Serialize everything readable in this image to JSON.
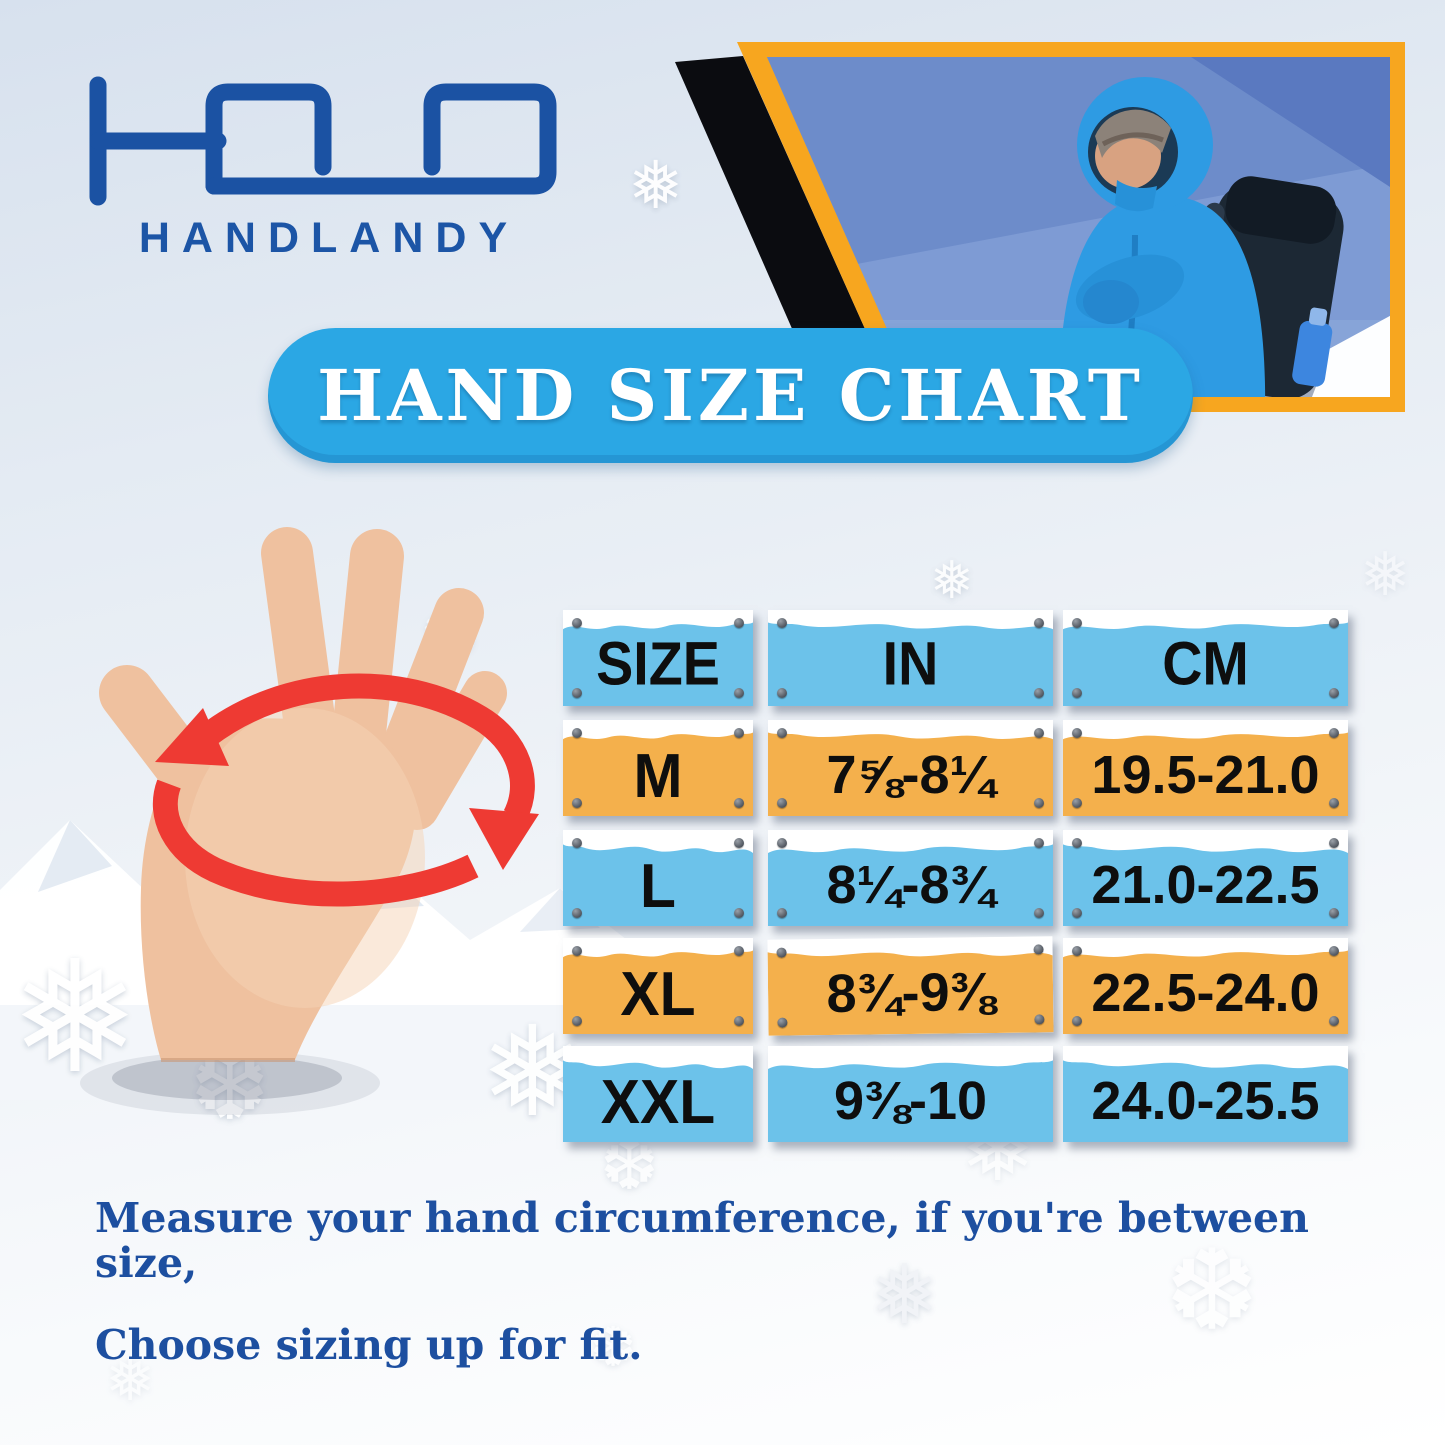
{
  "brand": {
    "name": "HANDLANDY"
  },
  "banner": {
    "title": "HAND SIZE CHART"
  },
  "chart_data": {
    "type": "table",
    "title": "HAND SIZE CHART",
    "columns": [
      "SIZE",
      "IN",
      "CM"
    ],
    "rows": [
      [
        "M",
        "7⅝-8¼",
        "19.5-21.0"
      ],
      [
        "L",
        "8¼-8¾",
        "21.0-22.5"
      ],
      [
        "XL",
        "8¾-9⅜",
        "22.5-24.0"
      ],
      [
        "XXL",
        "9⅜-10",
        "24.0-25.5"
      ]
    ],
    "header_plaque_color": "blue",
    "row_plaque_colors": [
      "orange",
      "blue",
      "orange",
      "blue"
    ]
  },
  "footnote": {
    "line1": "Measure your hand circumference, if you're between size,",
    "line2": "Choose sizing up for fit."
  },
  "colors": {
    "brand_blue": "#1B52A3",
    "banner_blue": "#2BA7E4",
    "plaque_blue": "#6CC2EA",
    "plaque_orange": "#F4B04C",
    "frame_orange": "#F7A61F",
    "arrow_red": "#EE3A33",
    "cell_text": "#0E0E0E",
    "footnote_blue": "#1D4FA0"
  }
}
